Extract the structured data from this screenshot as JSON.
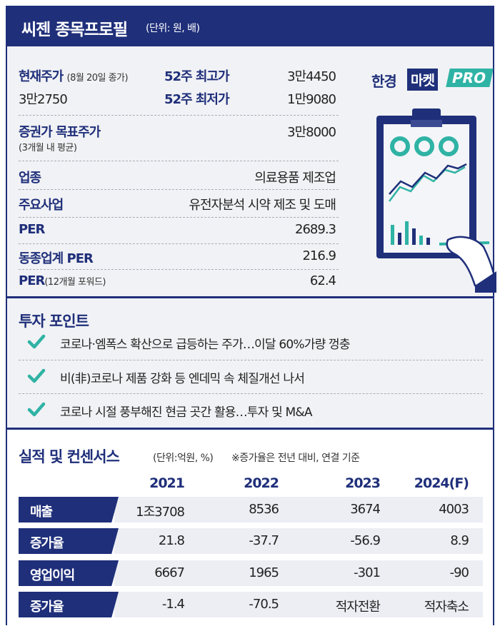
{
  "header": {
    "title": "씨젠 종목프로필",
    "unit": "(단위: 원, 배)"
  },
  "brand": {
    "hankyung": "한경",
    "market": "마켓",
    "pro": "PRO"
  },
  "profile": {
    "current_price_label": "현재주가",
    "current_price_note": "(8월 20일 종가)",
    "current_price_value": "3만2750",
    "high52_label": "52주 최고가",
    "high52_value": "3만4450",
    "low52_label": "52주 최저가",
    "low52_value": "1만9080",
    "target_label": "증권가 목표주가",
    "target_note": "(3개월 내 평균)",
    "target_value": "3만8000",
    "industry_label": "업종",
    "industry_value": "의료용품 제조업",
    "business_label": "주요사업",
    "business_value": "유전자분석 시약 제조 및 도매",
    "per_label": "PER",
    "per_value": "2689.3",
    "sector_per_label": "동종업계 PER",
    "sector_per_value": "216.9",
    "fwd_per_label": "PER",
    "fwd_per_note": "(12개월 포워드)",
    "fwd_per_value": "62.4"
  },
  "points": {
    "title": "투자 포인트",
    "items": [
      "코로나·엠폭스 확산으로 급등하는 주가…이달 60%가량 껑충",
      "비(非)코로나 제품 강화 등 엔데믹 속 체질개선 나서",
      "코로나 시절 풍부해진 현금 곳간 활용…투자 및 M&A"
    ],
    "check_color": "#2fb3a5"
  },
  "performance": {
    "title": "실적 및 컨센서스",
    "unit": "(단위:억원, %)",
    "note": "※증가율은 전년 대비, 연결 기준",
    "years": [
      "2021",
      "2022",
      "2023",
      "2024(F)"
    ],
    "rows": [
      {
        "label": "매출",
        "values": [
          "1조3708",
          "8536",
          "3674",
          "4003"
        ]
      },
      {
        "label": "증가율",
        "values": [
          "21.8",
          "-37.7",
          "-56.9",
          "8.9"
        ]
      },
      {
        "label": "영업이익",
        "values": [
          "6667",
          "1965",
          "-301",
          "-90"
        ]
      },
      {
        "label": "증가율",
        "values": [
          "-1.4",
          "-70.5",
          "적자전환",
          "적자축소"
        ]
      }
    ]
  },
  "colors": {
    "navy": "#1f2f7a",
    "teal": "#2fb3a5",
    "background": "#f1f2f5",
    "row": "#eceef3"
  }
}
